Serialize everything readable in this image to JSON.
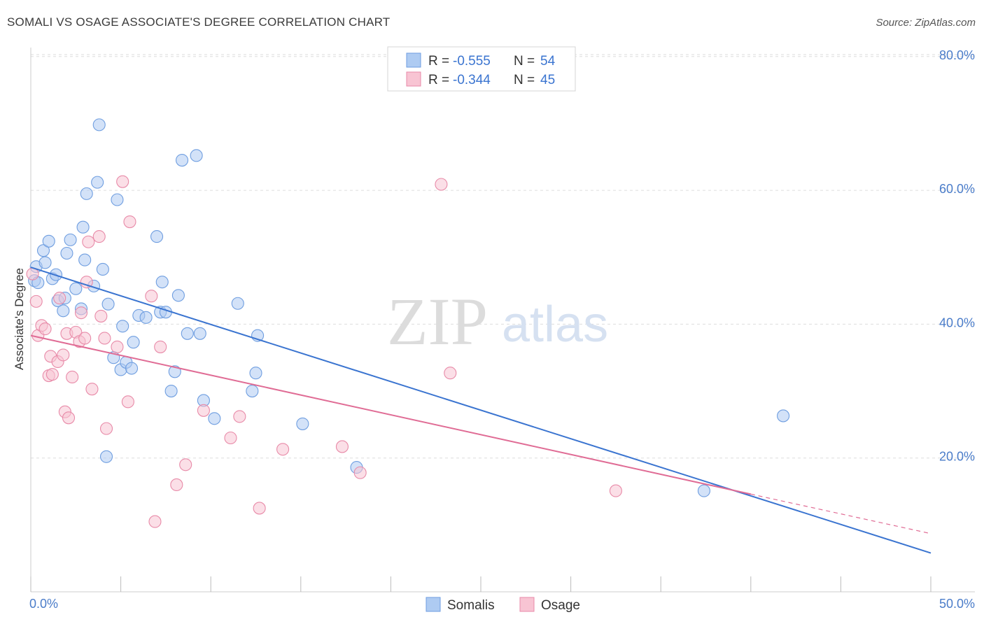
{
  "header": {
    "title": "SOMALI VS OSAGE ASSOCIATE'S DEGREE CORRELATION CHART",
    "source": "Source: ZipAtlas.com"
  },
  "watermark": {
    "zip": "ZIP",
    "atlas": "atlas"
  },
  "legend_top": {
    "rows": [
      {
        "r_label": "R =",
        "r_value": "-0.555",
        "n_label": "N =",
        "n_value": "54",
        "color": "#aecbf2",
        "border": "#6f9ee0"
      },
      {
        "r_label": "R =",
        "r_value": "-0.344",
        "n_label": "N =",
        "n_value": "45",
        "color": "#f8c4d3",
        "border": "#e88aa8"
      }
    ]
  },
  "legend_bottom": {
    "items": [
      {
        "label": "Somalis",
        "color": "#aecbf2",
        "border": "#6f9ee0"
      },
      {
        "label": "Osage",
        "color": "#f8c4d3",
        "border": "#e88aa8"
      }
    ]
  },
  "chart_data": {
    "type": "scatter",
    "title": "SOMALI VS OSAGE ASSOCIATE'S DEGREE CORRELATION CHART",
    "xlabel": "",
    "ylabel": "Associate's Degree",
    "xlim": [
      0,
      50
    ],
    "ylim": [
      0,
      85
    ],
    "x_tick_labels": [
      "0.0%",
      "50.0%"
    ],
    "y_ticks": [
      20,
      40,
      60,
      80
    ],
    "y_tick_labels": [
      "20.0%",
      "40.0%",
      "60.0%",
      "80.0%"
    ],
    "grid": true,
    "legend_position": "top-center",
    "series": [
      {
        "name": "Somalis",
        "color": "#6f9ee0",
        "fill": "#aecbf2",
        "line_color": "#3a74d0",
        "trend": {
          "x": [
            0,
            50
          ],
          "y": [
            48.5,
            5.8
          ]
        },
        "points": [
          [
            0.2,
            46.5
          ],
          [
            0.3,
            48.6
          ],
          [
            0.4,
            46.2
          ],
          [
            0.7,
            51.0
          ],
          [
            0.8,
            49.2
          ],
          [
            1.0,
            52.4
          ],
          [
            1.2,
            46.8
          ],
          [
            1.4,
            47.4
          ],
          [
            1.5,
            43.5
          ],
          [
            1.8,
            42.0
          ],
          [
            1.9,
            43.9
          ],
          [
            2.0,
            50.6
          ],
          [
            2.2,
            52.6
          ],
          [
            2.5,
            45.3
          ],
          [
            2.8,
            42.3
          ],
          [
            2.9,
            54.5
          ],
          [
            3.0,
            49.6
          ],
          [
            3.1,
            59.5
          ],
          [
            3.5,
            45.7
          ],
          [
            3.7,
            61.2
          ],
          [
            3.8,
            69.8
          ],
          [
            4.0,
            48.2
          ],
          [
            4.2,
            20.2
          ],
          [
            4.3,
            43.0
          ],
          [
            4.6,
            35.0
          ],
          [
            4.8,
            58.6
          ],
          [
            5.0,
            33.2
          ],
          [
            5.1,
            39.7
          ],
          [
            5.3,
            34.3
          ],
          [
            5.6,
            33.4
          ],
          [
            5.7,
            37.3
          ],
          [
            6.0,
            41.3
          ],
          [
            6.4,
            41.0
          ],
          [
            7.0,
            53.1
          ],
          [
            7.2,
            41.8
          ],
          [
            7.3,
            46.3
          ],
          [
            7.5,
            41.8
          ],
          [
            7.8,
            30.0
          ],
          [
            8.0,
            32.9
          ],
          [
            8.2,
            44.3
          ],
          [
            8.4,
            64.5
          ],
          [
            8.7,
            38.6
          ],
          [
            9.2,
            65.2
          ],
          [
            9.4,
            38.6
          ],
          [
            9.6,
            28.6
          ],
          [
            10.2,
            25.9
          ],
          [
            11.5,
            43.1
          ],
          [
            12.3,
            30.0
          ],
          [
            12.5,
            32.7
          ],
          [
            12.6,
            38.3
          ],
          [
            15.1,
            25.1
          ],
          [
            18.1,
            18.6
          ],
          [
            37.4,
            15.1
          ],
          [
            41.8,
            26.3
          ]
        ]
      },
      {
        "name": "Osage",
        "color": "#e88aa8",
        "fill": "#f8c4d3",
        "line_color": "#e06c95",
        "trend": {
          "x": [
            0,
            40
          ],
          "y": [
            38.3,
            14.6
          ]
        },
        "trend_dashed": {
          "x": [
            40,
            50
          ],
          "y": [
            14.6,
            8.7
          ]
        },
        "points": [
          [
            0.1,
            47.5
          ],
          [
            0.3,
            43.4
          ],
          [
            0.4,
            38.3
          ],
          [
            0.6,
            39.8
          ],
          [
            0.8,
            39.3
          ],
          [
            1.0,
            32.3
          ],
          [
            1.1,
            35.2
          ],
          [
            1.2,
            32.5
          ],
          [
            1.5,
            34.4
          ],
          [
            1.6,
            43.9
          ],
          [
            1.8,
            35.4
          ],
          [
            1.9,
            26.9
          ],
          [
            2.0,
            38.6
          ],
          [
            2.1,
            26.0
          ],
          [
            2.3,
            32.1
          ],
          [
            2.5,
            38.8
          ],
          [
            2.7,
            37.4
          ],
          [
            2.8,
            41.7
          ],
          [
            3.0,
            37.9
          ],
          [
            3.1,
            46.3
          ],
          [
            3.2,
            52.3
          ],
          [
            3.4,
            30.3
          ],
          [
            3.8,
            53.1
          ],
          [
            3.9,
            41.2
          ],
          [
            4.1,
            37.9
          ],
          [
            4.2,
            24.4
          ],
          [
            4.8,
            36.6
          ],
          [
            5.1,
            61.3
          ],
          [
            5.4,
            28.4
          ],
          [
            5.5,
            55.3
          ],
          [
            6.7,
            44.2
          ],
          [
            6.9,
            10.5
          ],
          [
            7.2,
            36.6
          ],
          [
            8.1,
            16.0
          ],
          [
            8.6,
            19.0
          ],
          [
            9.6,
            27.1
          ],
          [
            11.1,
            23.0
          ],
          [
            11.6,
            26.2
          ],
          [
            12.7,
            12.5
          ],
          [
            14.0,
            21.3
          ],
          [
            17.3,
            21.7
          ],
          [
            18.3,
            17.8
          ],
          [
            22.8,
            60.9
          ],
          [
            23.3,
            32.7
          ],
          [
            32.5,
            15.1
          ]
        ]
      }
    ]
  }
}
